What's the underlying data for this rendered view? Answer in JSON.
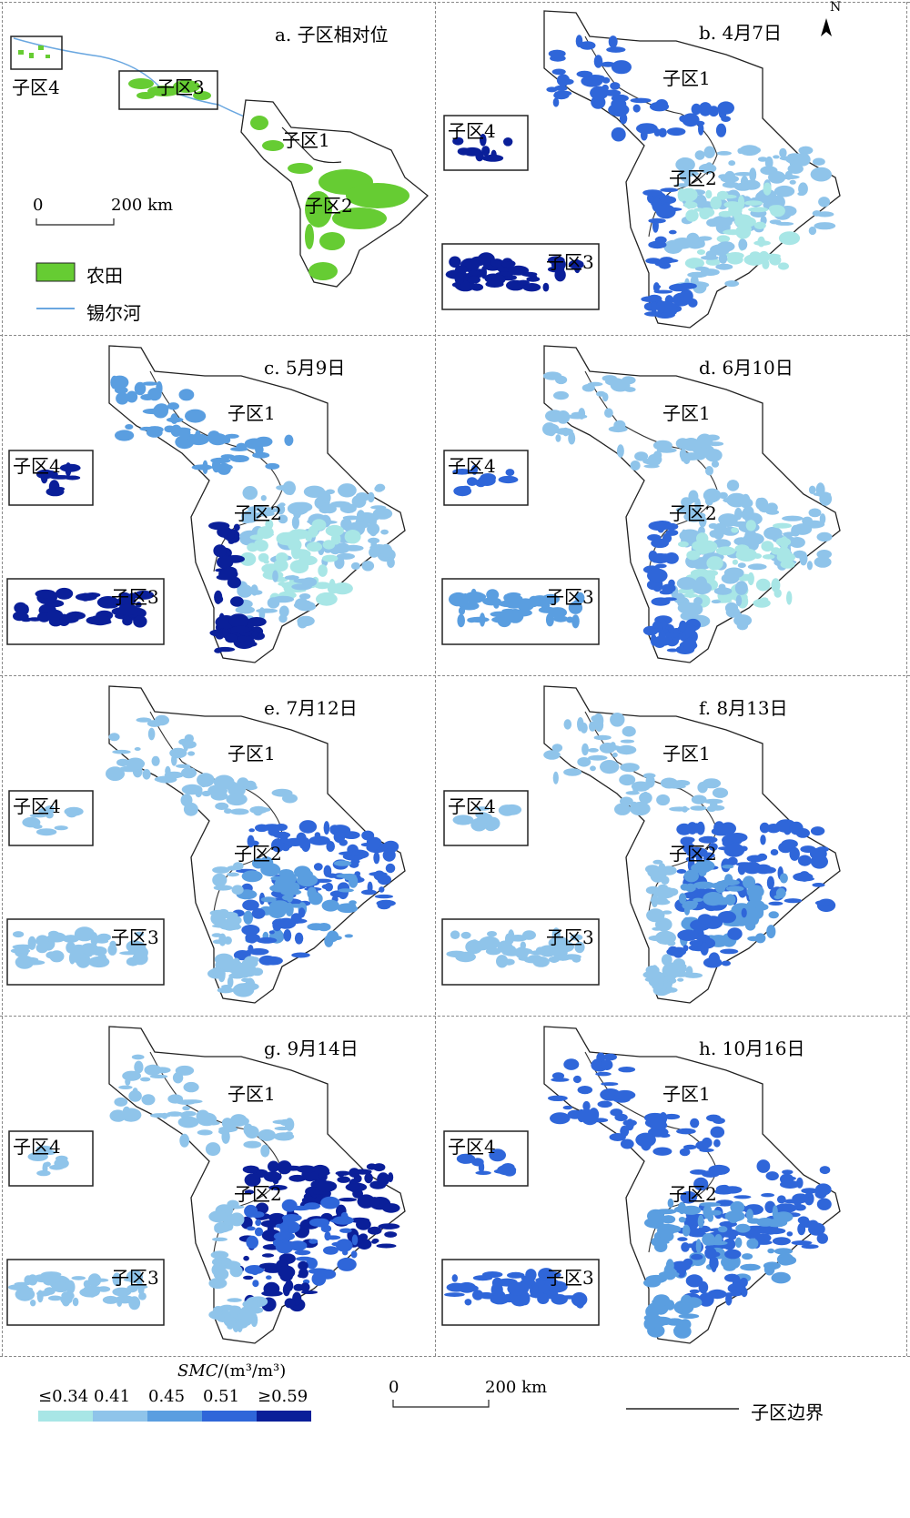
{
  "panels": [
    {
      "id": "a",
      "title": "a. 子区相对位"
    },
    {
      "id": "b",
      "title": "b. 4月7日"
    },
    {
      "id": "c",
      "title": "c. 5月9日"
    },
    {
      "id": "d",
      "title": "d. 6月10日"
    },
    {
      "id": "e",
      "title": "e. 7月12日"
    },
    {
      "id": "f",
      "title": "f. 8月13日"
    },
    {
      "id": "g",
      "title": "g. 9月14日"
    },
    {
      "id": "h",
      "title": "h. 10月16日"
    }
  ],
  "subareas": {
    "s1": "子区1",
    "s2": "子区2",
    "s3": "子区3",
    "s4": "子区4"
  },
  "panel_a_legend": {
    "farmland": "农田",
    "river": "锡尔河",
    "scale_start": "0",
    "scale_end": "200 km"
  },
  "north_label": "N",
  "bottom_legend": {
    "smc_title_italic": "SMC",
    "smc_title_unit": "/(m³/m³)",
    "classes": [
      "≤0.34",
      "0.41",
      "0.45",
      "0.51",
      "≥0.59"
    ],
    "scale_start": "0",
    "scale_end": "200 km",
    "boundary_label": "子区边界"
  },
  "colors": {
    "farmland": "#66cc33",
    "river": "#6aa7e0",
    "smc": [
      "#a8e6e6",
      "#8fc4ea",
      "#5a9ee0",
      "#2f66d9",
      "#0a1f99"
    ]
  }
}
